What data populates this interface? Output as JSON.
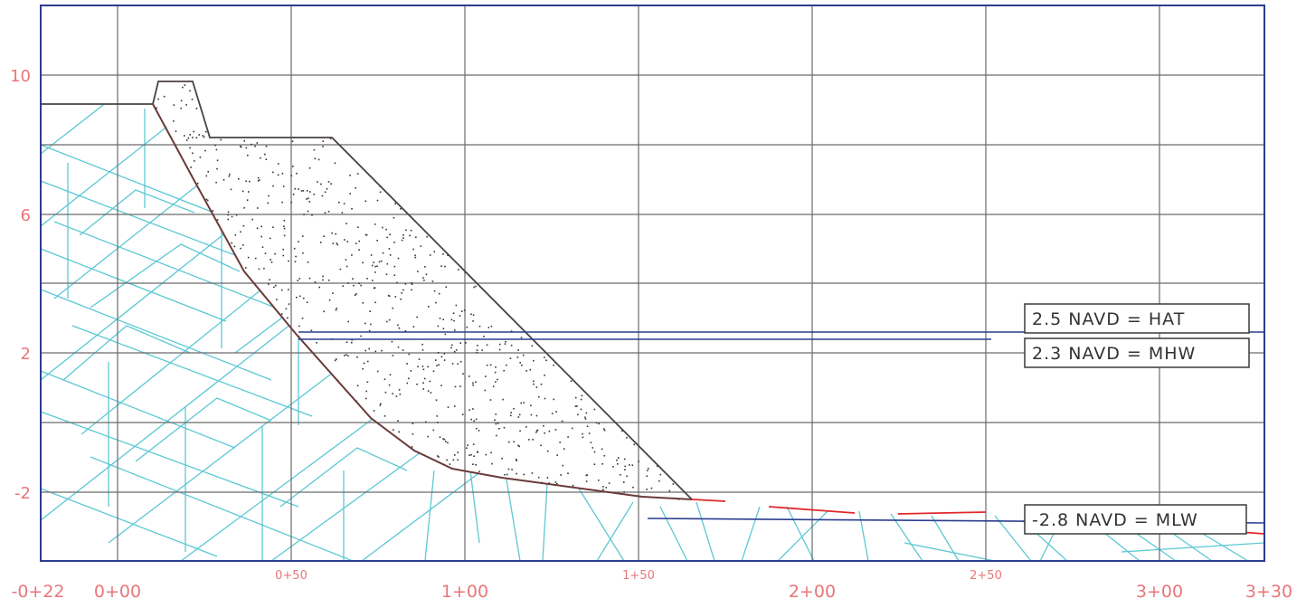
{
  "chart_data": {
    "type": "cross-section",
    "x_ticks_major": [
      "-0+22",
      "0+00",
      "1+00",
      "2+00",
      "3+00",
      "3+30"
    ],
    "x_ticks_minor": [
      "0+50",
      "1+50",
      "2+50"
    ],
    "y_ticks": [
      "10",
      "6",
      "2",
      "-2"
    ],
    "xlim": [
      -22,
      330
    ],
    "ylim": [
      -4,
      12
    ],
    "water_levels": [
      {
        "label": "2.5 NAVD = HAT",
        "elevation": 2.5
      },
      {
        "label": "2.3 NAVD = MHW",
        "elevation": 2.3
      },
      {
        "label": "-2.8 NAVD = MLW",
        "elevation": -2.8
      }
    ],
    "colors": {
      "frame": "#2b3d8f",
      "grid": "#6b6b6b",
      "tick_labels": "#e8767a",
      "hatch": "#5cc8d4",
      "outline": "#4a4242",
      "subgrade": "#6b3a3a",
      "existing_grade": "#e0282a",
      "water_line": "#2b3d8f"
    }
  }
}
